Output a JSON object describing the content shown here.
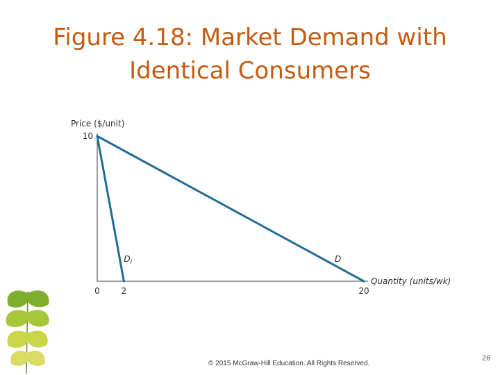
{
  "slide": {
    "title_line1": "Figure 4.18: Market Demand with",
    "title_line2": "Identical Consumers",
    "footer": "© 2015 McGraw-Hill Education. All Rights Reserved.",
    "page_number": "26"
  },
  "colors": {
    "title": "#c55a11",
    "curve": "#1f6b94",
    "axis": "#3a3a3a"
  },
  "icons": [
    "ginkgo-leaf-icon"
  ],
  "chart_data": {
    "type": "line",
    "title": "",
    "xlabel": "Quantity (units/wk)",
    "ylabel": "Price ($/unit)",
    "xlim": [
      0,
      20
    ],
    "ylim": [
      0,
      10
    ],
    "x_tick_labels": [
      {
        "value": 0,
        "label": "0"
      },
      {
        "value": 2,
        "label": "2"
      },
      {
        "value": 20,
        "label": "20"
      }
    ],
    "y_tick_labels": [
      {
        "value": 10,
        "label": "10"
      }
    ],
    "series": [
      {
        "name": "Di",
        "label_italic": "D",
        "label_sub": "i",
        "points": [
          [
            0,
            10
          ],
          [
            2,
            0
          ]
        ]
      },
      {
        "name": "D",
        "label_italic": "D",
        "label_sub": "",
        "points": [
          [
            0,
            10
          ],
          [
            20,
            0
          ]
        ]
      }
    ],
    "grid": false
  }
}
